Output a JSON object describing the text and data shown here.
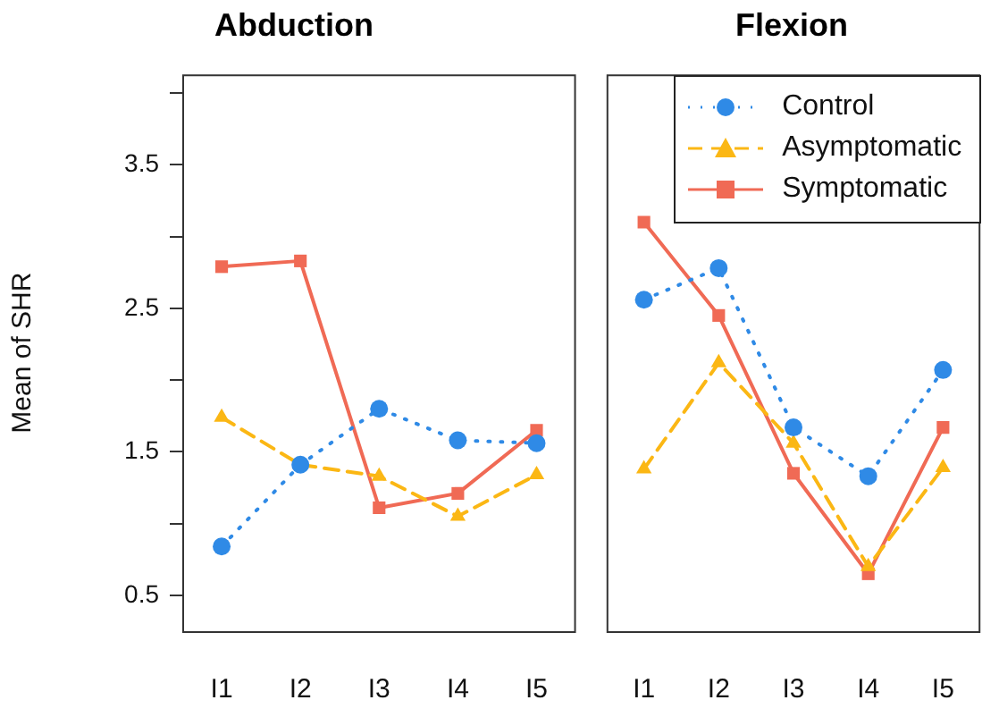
{
  "chart_data": [
    {
      "type": "line",
      "title": "Abduction",
      "ylabel": "Mean of SHR",
      "categories": [
        "I1",
        "I2",
        "I3",
        "I4",
        "I5"
      ],
      "ylim": [
        0.25,
        4.13
      ],
      "yticks": [
        0.5,
        {
          "value": 1,
          "label": null
        },
        1.5,
        {
          "value": 2,
          "label": null
        },
        2.5,
        {
          "value": 3,
          "label": null
        },
        3.5,
        {
          "value": 4,
          "label": null
        }
      ],
      "grid": false,
      "series": [
        {
          "color": "#2f8ae6",
          "marker": "circle",
          "line_style": "dotted",
          "values": [
            0.84,
            1.41,
            1.8,
            1.58,
            1.56
          ]
        },
        {
          "color": "#fbb714",
          "marker": "triangle",
          "line_style": "dashed",
          "values": [
            1.74,
            1.41,
            1.33,
            1.05,
            1.34
          ]
        },
        {
          "color": "#f06a55",
          "marker": "square",
          "line_style": "solid",
          "values": [
            2.79,
            2.83,
            1.11,
            1.21,
            1.65
          ]
        }
      ]
    },
    {
      "type": "line",
      "title": "Flexion",
      "categories": [
        "I1",
        "I2",
        "I3",
        "I4",
        "I5"
      ],
      "ylim": [
        0.25,
        4.13
      ],
      "tick_labels": "x",
      "grid": false,
      "legend": "top right",
      "series": [
        {
          "name": "Control",
          "color": "#2f8ae6",
          "marker": "circle",
          "line_style": "dotted",
          "values": [
            2.56,
            2.78,
            1.67,
            1.33,
            2.07
          ]
        },
        {
          "name": "Asymptomatic",
          "color": "#fbb714",
          "marker": "triangle",
          "line_style": "dashed",
          "values": [
            1.38,
            2.12,
            1.56,
            0.7,
            1.39
          ]
        },
        {
          "name": "Symptomatic",
          "color": "#f06a55",
          "marker": "square",
          "line_style": "solid",
          "values": [
            3.1,
            2.45,
            1.35,
            0.65,
            1.67
          ]
        }
      ]
    }
  ]
}
